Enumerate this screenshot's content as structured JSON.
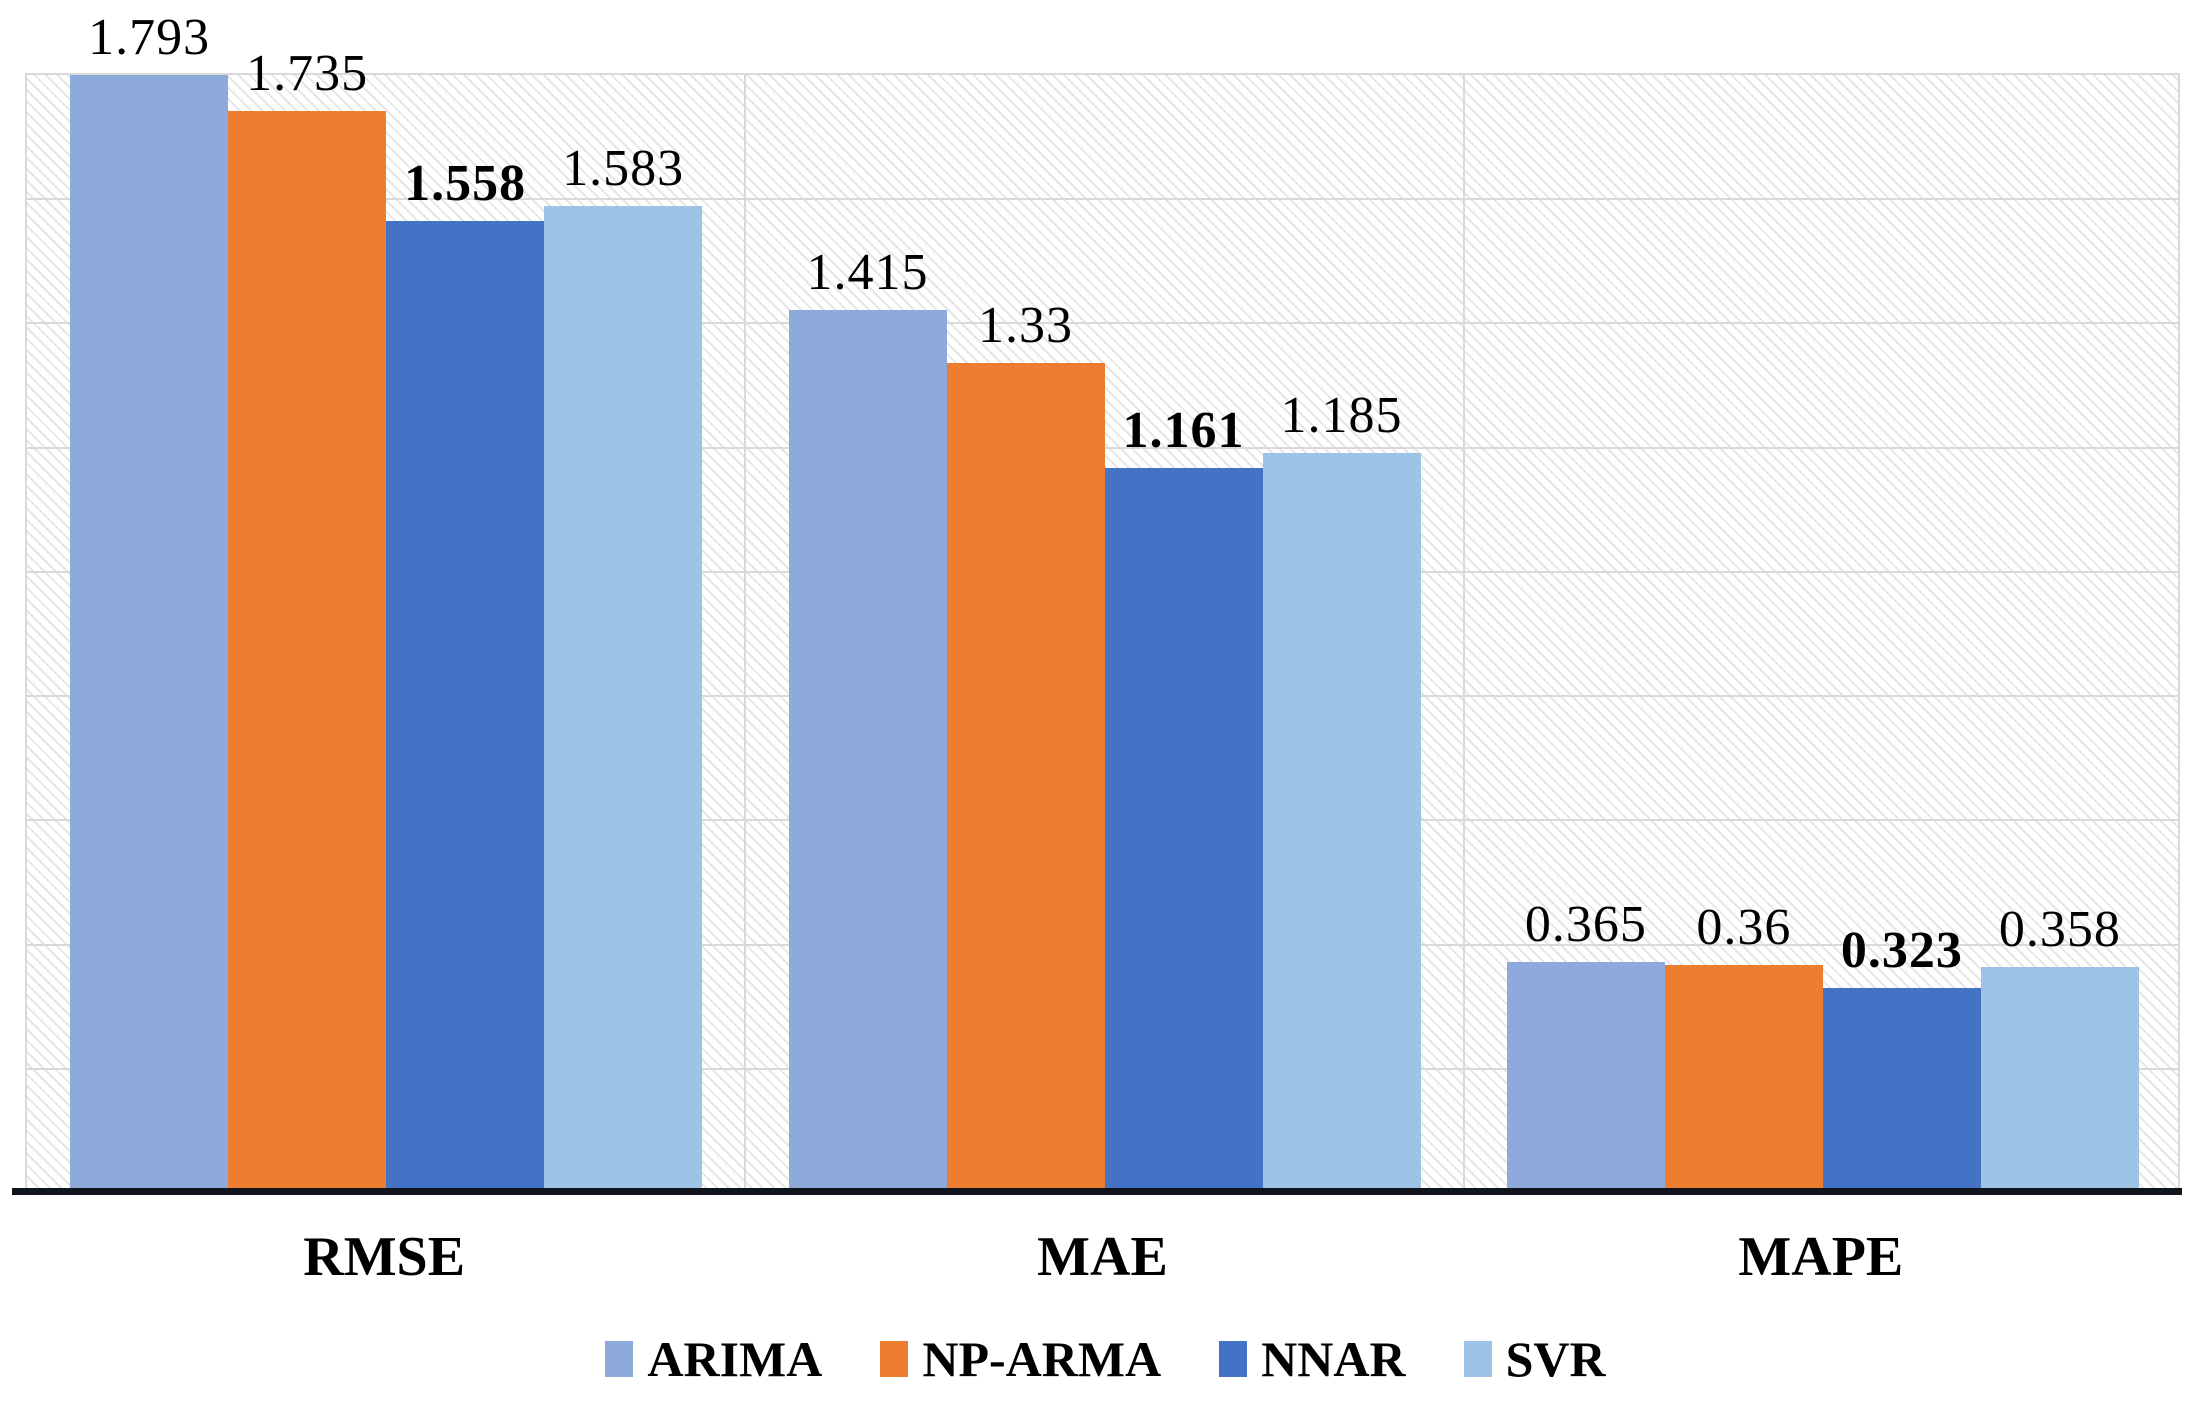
{
  "chart_data": {
    "type": "bar",
    "title": "",
    "xlabel": "",
    "ylabel": "",
    "categories": [
      "RMSE",
      "MAE",
      "MAPE"
    ],
    "series": [
      {
        "name": "ARIMA",
        "color": "#8EAADB",
        "bold_labels": false,
        "values": [
          1.793,
          1.415,
          0.365
        ]
      },
      {
        "name": "NP-ARMA",
        "color": "#ED7D31",
        "bold_labels": false,
        "values": [
          1.735,
          1.33,
          0.36
        ]
      },
      {
        "name": "NNAR",
        "color": "#4472C4",
        "bold_labels": true,
        "values": [
          1.558,
          1.161,
          0.323
        ]
      },
      {
        "name": "SVR",
        "color": "#9DC3E6",
        "bold_labels": false,
        "values": [
          1.583,
          1.185,
          0.358
        ]
      }
    ],
    "ylim": [
      0,
      1.8
    ],
    "y_major_unit": 0.2,
    "grid": true,
    "gridline_color": "#D9D9D9",
    "axis_color": "#10151C",
    "plot_background_pattern": "diagonal-hatch",
    "legend_position": "bottom",
    "data_label_position": "outside-end"
  }
}
